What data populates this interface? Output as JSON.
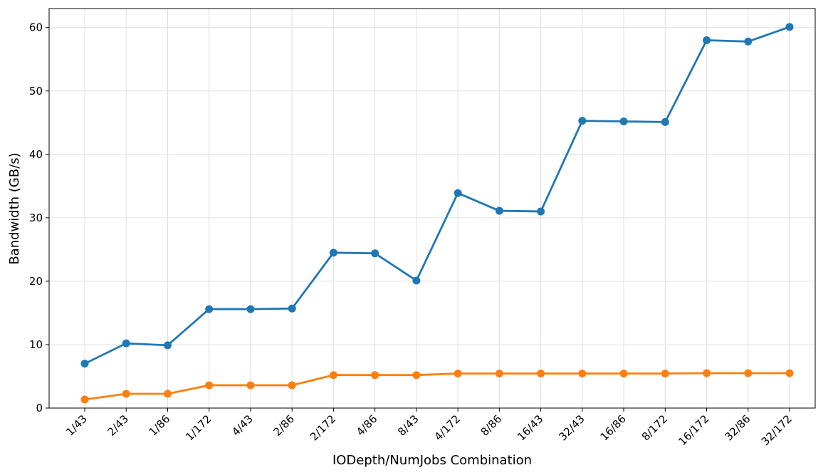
{
  "chart_data": {
    "type": "line",
    "x_label": "IODepth/NumJobs Combination",
    "y_label": "Bandwidth (GB/s)",
    "categories": [
      "1/43",
      "2/43",
      "1/86",
      "1/172",
      "4/43",
      "2/86",
      "2/172",
      "4/86",
      "8/43",
      "4/172",
      "8/86",
      "16/43",
      "32/43",
      "16/86",
      "8/172",
      "16/172",
      "32/86",
      "32/172"
    ],
    "series": [
      {
        "color": "#1f77b4",
        "values": [
          7.0,
          10.2,
          9.9,
          15.6,
          15.6,
          15.7,
          24.5,
          24.4,
          20.1,
          33.9,
          31.1,
          31.0,
          45.3,
          45.2,
          45.1,
          58.0,
          57.8,
          60.1
        ]
      },
      {
        "color": "#ff7f0e",
        "values": [
          1.35,
          2.25,
          2.25,
          3.6,
          3.6,
          3.6,
          5.2,
          5.2,
          5.2,
          5.45,
          5.45,
          5.45,
          5.45,
          5.45,
          5.45,
          5.5,
          5.5,
          5.5
        ]
      }
    ],
    "ylim": [
      0,
      63
    ],
    "yticks": [
      0,
      10,
      20,
      30,
      40,
      50,
      60
    ],
    "grid": true
  }
}
